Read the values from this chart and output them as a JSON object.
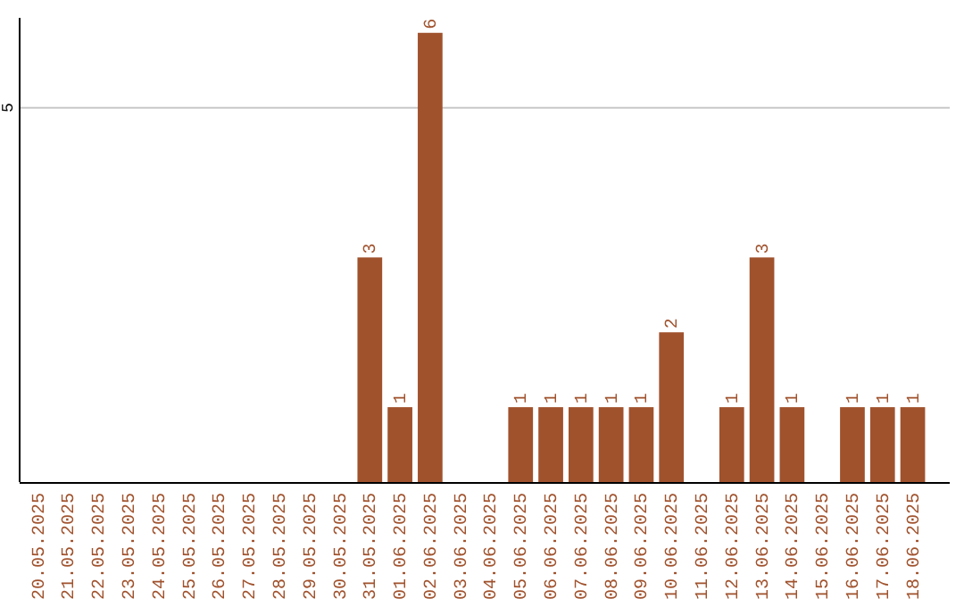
{
  "chart_data": {
    "type": "bar",
    "categories": [
      "20.05.2025",
      "21.05.2025",
      "22.05.2025",
      "23.05.2025",
      "24.05.2025",
      "25.05.2025",
      "26.05.2025",
      "27.05.2025",
      "28.05.2025",
      "29.05.2025",
      "30.05.2025",
      "31.05.2025",
      "01.06.2025",
      "02.06.2025",
      "03.06.2025",
      "04.06.2025",
      "05.06.2025",
      "06.06.2025",
      "07.06.2025",
      "08.06.2025",
      "09.06.2025",
      "10.06.2025",
      "11.06.2025",
      "12.06.2025",
      "13.06.2025",
      "14.06.2025",
      "15.06.2025",
      "16.06.2025",
      "17.06.2025",
      "18.06.2025"
    ],
    "values": [
      0,
      0,
      0,
      0,
      0,
      0,
      0,
      0,
      0,
      0,
      0,
      3,
      1,
      6,
      0,
      0,
      1,
      1,
      1,
      1,
      1,
      2,
      0,
      1,
      3,
      1,
      0,
      1,
      1,
      1
    ],
    "value_labels": [
      null,
      null,
      null,
      null,
      null,
      null,
      null,
      null,
      null,
      null,
      null,
      "3",
      "1",
      "6",
      null,
      null,
      "1",
      "1",
      "1",
      "1",
      "1",
      "2",
      null,
      "1",
      "3",
      "1",
      null,
      "1",
      "1",
      "1"
    ],
    "color": "#a0522d",
    "ylim": [
      0,
      6.2
    ],
    "yticks": [
      5
    ],
    "grid": "y"
  }
}
